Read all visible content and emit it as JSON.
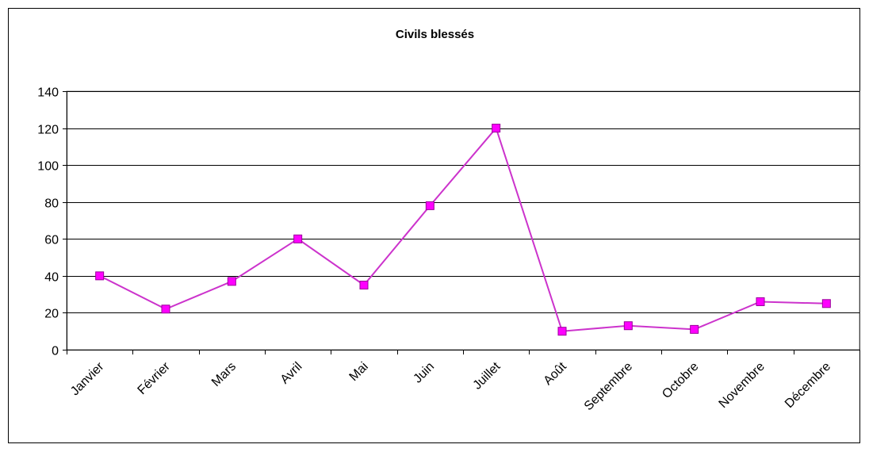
{
  "chart_data": {
    "type": "line",
    "title": "Civils blessés",
    "xlabel": "",
    "ylabel": "",
    "categories": [
      "Janvier",
      "Février",
      "Mars",
      "Avril",
      "Mai",
      "Juin",
      "Juillet",
      "Août",
      "Septembre",
      "Octobre",
      "Novembre",
      "Décembre"
    ],
    "series": [
      {
        "values": [
          40,
          22,
          37,
          60,
          35,
          78,
          120,
          10,
          13,
          11,
          26,
          25
        ]
      }
    ],
    "ylim": [
      0,
      140
    ],
    "yticks": [
      0,
      20,
      40,
      60,
      80,
      100,
      120,
      140
    ],
    "grid": true,
    "legend": "none",
    "colors": {
      "line": "#cc33cc",
      "marker": "#ff00ff",
      "grid": "#000000"
    }
  }
}
